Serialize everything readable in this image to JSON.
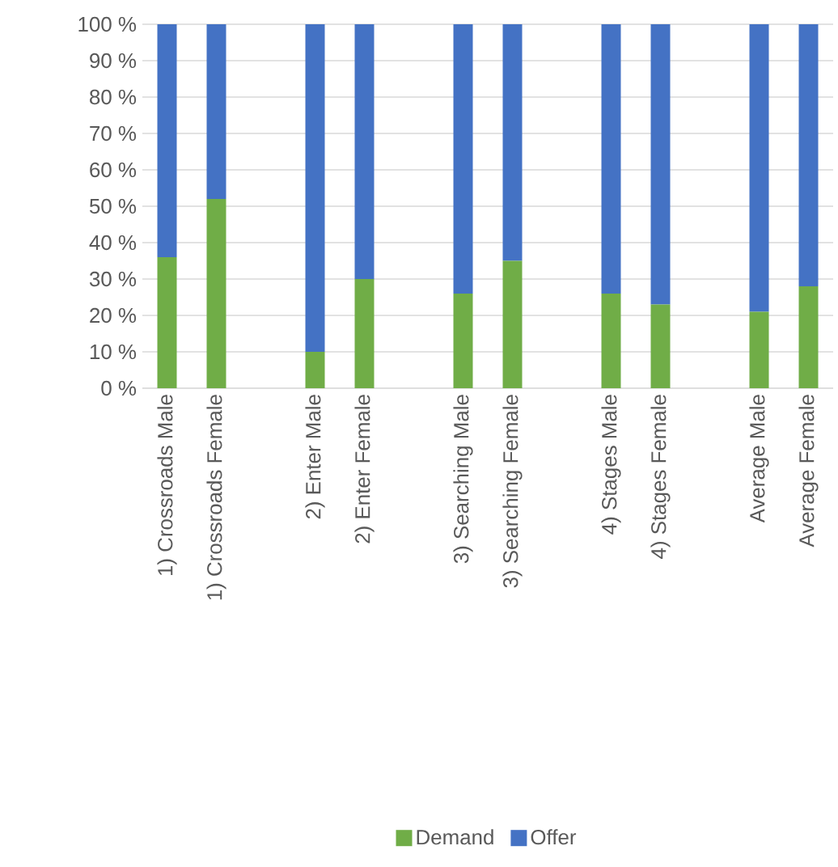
{
  "chart_data": {
    "type": "bar",
    "stacked": true,
    "categories": [
      "1) Crossroads Male",
      "1) Crossroads Female",
      null,
      "2) Enter Male",
      "2) Enter Female",
      null,
      "3) Searching Male",
      "3) Searching Female",
      null,
      "4) Stages Male",
      "4) Stages Female",
      null,
      "Average Male",
      "Average Female"
    ],
    "series": [
      {
        "name": "Demand",
        "color": "#70ad47",
        "values": [
          36,
          52,
          null,
          10,
          30,
          null,
          26,
          35,
          null,
          26,
          23,
          null,
          21,
          28
        ]
      },
      {
        "name": "Offer",
        "color": "#4472c4",
        "values": [
          64,
          48,
          null,
          90,
          70,
          null,
          74,
          65,
          null,
          74,
          77,
          null,
          79,
          72
        ]
      }
    ],
    "ylim": [
      0,
      100
    ],
    "yticks": [
      {
        "value": 0,
        "label": "0 %"
      },
      {
        "value": 10,
        "label": "10 %"
      },
      {
        "value": 20,
        "label": "20 %"
      },
      {
        "value": 30,
        "label": "30 %"
      },
      {
        "value": 40,
        "label": "40 %"
      },
      {
        "value": 50,
        "label": "50 %"
      },
      {
        "value": 60,
        "label": "60 %"
      },
      {
        "value": 70,
        "label": "70 %"
      },
      {
        "value": 80,
        "label": "80 %"
      },
      {
        "value": 90,
        "label": "90 %"
      },
      {
        "value": 100,
        "label": "100 %"
      }
    ],
    "grid": "y",
    "legend": "bottom"
  }
}
